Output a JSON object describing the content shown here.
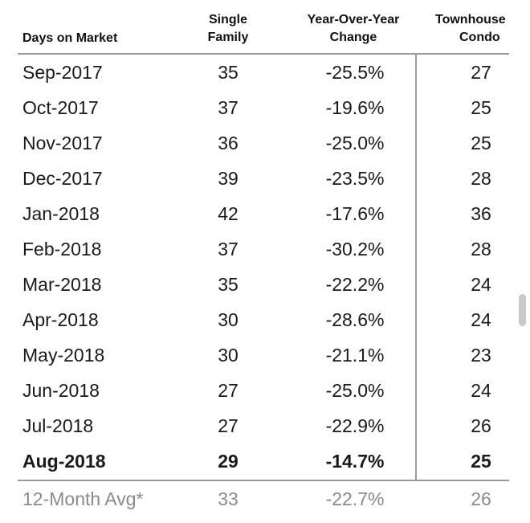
{
  "headers": {
    "days_on_market": "Days on Market",
    "single_family_line1": "Single",
    "single_family_line2": "Family",
    "yoy_line1": "Year-Over-Year",
    "yoy_line2": "Change",
    "townhouse_line1": "Townhouse",
    "townhouse_line2": "Condo"
  },
  "rows": [
    {
      "month": "Sep-2017",
      "sf": "35",
      "yoy": "-25.5%",
      "th": "27"
    },
    {
      "month": "Oct-2017",
      "sf": "37",
      "yoy": "-19.6%",
      "th": "25"
    },
    {
      "month": "Nov-2017",
      "sf": "36",
      "yoy": "-25.0%",
      "th": "25"
    },
    {
      "month": "Dec-2017",
      "sf": "39",
      "yoy": "-23.5%",
      "th": "28"
    },
    {
      "month": "Jan-2018",
      "sf": "42",
      "yoy": "-17.6%",
      "th": "36"
    },
    {
      "month": "Feb-2018",
      "sf": "37",
      "yoy": "-30.2%",
      "th": "28"
    },
    {
      "month": "Mar-2018",
      "sf": "35",
      "yoy": "-22.2%",
      "th": "24"
    },
    {
      "month": "Apr-2018",
      "sf": "30",
      "yoy": "-28.6%",
      "th": "24"
    },
    {
      "month": "May-2018",
      "sf": "30",
      "yoy": "-21.1%",
      "th": "23"
    },
    {
      "month": "Jun-2018",
      "sf": "27",
      "yoy": "-25.0%",
      "th": "24"
    },
    {
      "month": "Jul-2018",
      "sf": "27",
      "yoy": "-22.9%",
      "th": "26"
    },
    {
      "month": "Aug-2018",
      "sf": "29",
      "yoy": "-14.7%",
      "th": "25"
    }
  ],
  "average": {
    "month": "12-Month Avg*",
    "sf": "33",
    "yoy": "-22.7%",
    "th": "26"
  }
}
